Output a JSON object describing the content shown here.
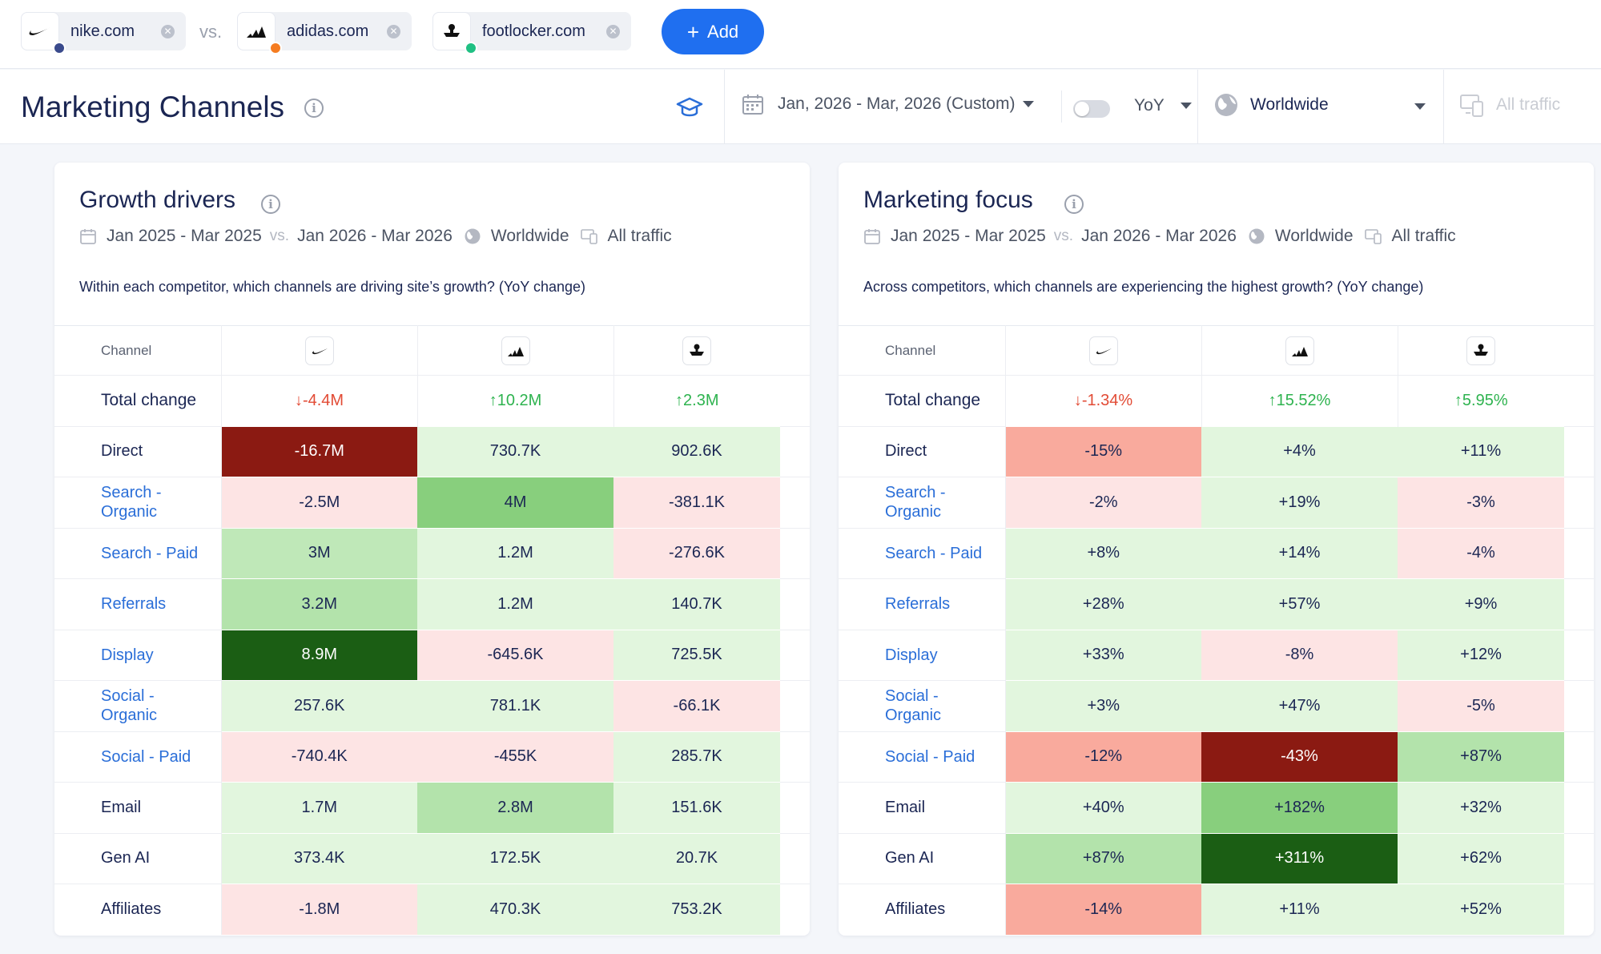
{
  "compare": {
    "sites": [
      {
        "name": "nike.com",
        "dot_color": "#3a4a8c"
      },
      {
        "name": "adidas.com",
        "dot_color": "#f57c21"
      },
      {
        "name": "footlocker.com",
        "dot_color": "#20c083"
      }
    ],
    "vs_label": "vs.",
    "add_label": "Add"
  },
  "header": {
    "title": "Marketing Channels",
    "date_range": "Jan, 2026 - Mar, 2026 (Custom)",
    "comparison": "YoY",
    "country": "Worldwide",
    "traffic": "All traffic"
  },
  "growth_drivers": {
    "title": "Growth drivers",
    "period_a": "Jan 2025 - Mar 2025",
    "vs": "vs.",
    "period_b": "Jan 2026 - Mar 2026",
    "country": "Worldwide",
    "traffic": "All traffic",
    "question": "Within each competitor, which channels are driving site’s growth? (YoY change)",
    "channel_header": "Channel",
    "total_label": "Total change",
    "totals": [
      "↓-4.4M",
      "↑10.2M",
      "↑2.3M"
    ],
    "rows": [
      {
        "channel": "Direct",
        "link": false,
        "values": [
          "-16.7M",
          "730.7K",
          "902.6K"
        ]
      },
      {
        "channel": "Search - Organic",
        "link": true,
        "values": [
          "-2.5M",
          "4M",
          "-381.1K"
        ]
      },
      {
        "channel": "Search - Paid",
        "link": true,
        "values": [
          "3M",
          "1.2M",
          "-276.6K"
        ]
      },
      {
        "channel": "Referrals",
        "link": true,
        "values": [
          "3.2M",
          "1.2M",
          "140.7K"
        ]
      },
      {
        "channel": "Display",
        "link": true,
        "values": [
          "8.9M",
          "-645.6K",
          "725.5K"
        ]
      },
      {
        "channel": "Social - Organic",
        "link": true,
        "values": [
          "257.6K",
          "781.1K",
          "-66.1K"
        ]
      },
      {
        "channel": "Social - Paid",
        "link": true,
        "values": [
          "-740.4K",
          "-455K",
          "285.7K"
        ]
      },
      {
        "channel": "Email",
        "link": false,
        "values": [
          "1.7M",
          "2.8M",
          "151.6K"
        ]
      },
      {
        "channel": "Gen AI",
        "link": false,
        "values": [
          "373.4K",
          "172.5K",
          "20.7K"
        ]
      },
      {
        "channel": "Affiliates",
        "link": false,
        "values": [
          "-1.8M",
          "470.3K",
          "753.2K"
        ]
      }
    ],
    "colors": [
      [
        "#8b1a12",
        "#e2f6de",
        "#e2f6de"
      ],
      [
        "#fde4e4",
        "#88cf7d",
        "#fde4e4"
      ],
      [
        "#bfe8b8",
        "#e2f6de",
        "#fde4e4"
      ],
      [
        "#b3e3ab",
        "#e2f6de",
        "#e2f6de"
      ],
      [
        "#1b5e14",
        "#fde4e4",
        "#e2f6de"
      ],
      [
        "#e2f6de",
        "#e2f6de",
        "#fde4e4"
      ],
      [
        "#fde4e4",
        "#fde4e4",
        "#e2f6de"
      ],
      [
        "#e2f6de",
        "#b3e3ab",
        "#e2f6de"
      ],
      [
        "#e2f6de",
        "#e2f6de",
        "#e2f6de"
      ],
      [
        "#fde4e4",
        "#e2f6de",
        "#e2f6de"
      ]
    ]
  },
  "marketing_focus": {
    "title": "Marketing focus",
    "period_a": "Jan 2025 - Mar 2025",
    "vs": "vs.",
    "period_b": "Jan 2026 - Mar 2026",
    "country": "Worldwide",
    "traffic": "All traffic",
    "question": "Across competitors, which channels are experiencing the highest growth? (YoY change)",
    "channel_header": "Channel",
    "total_label": "Total change",
    "totals": [
      "↓-1.34%",
      "↑15.52%",
      "↑5.95%"
    ],
    "rows": [
      {
        "channel": "Direct",
        "link": false,
        "values": [
          "-15%",
          "+4%",
          "+11%"
        ]
      },
      {
        "channel": "Search - Organic",
        "link": true,
        "values": [
          "-2%",
          "+19%",
          "-3%"
        ]
      },
      {
        "channel": "Search - Paid",
        "link": true,
        "values": [
          "+8%",
          "+14%",
          "-4%"
        ]
      },
      {
        "channel": "Referrals",
        "link": true,
        "values": [
          "+28%",
          "+57%",
          "+9%"
        ]
      },
      {
        "channel": "Display",
        "link": true,
        "values": [
          "+33%",
          "-8%",
          "+12%"
        ]
      },
      {
        "channel": "Social - Organic",
        "link": true,
        "values": [
          "+3%",
          "+47%",
          "-5%"
        ]
      },
      {
        "channel": "Social - Paid",
        "link": true,
        "values": [
          "-12%",
          "-43%",
          "+87%"
        ]
      },
      {
        "channel": "Email",
        "link": false,
        "values": [
          "+40%",
          "+182%",
          "+32%"
        ]
      },
      {
        "channel": "Gen AI",
        "link": false,
        "values": [
          "+87%",
          "+311%",
          "+62%"
        ]
      },
      {
        "channel": "Affiliates",
        "link": false,
        "values": [
          "-14%",
          "+11%",
          "+52%"
        ]
      }
    ],
    "colors": [
      [
        "#f9aa9d",
        "#e2f6de",
        "#e2f6de"
      ],
      [
        "#fde4e4",
        "#e2f6de",
        "#fde4e4"
      ],
      [
        "#e2f6de",
        "#e2f6de",
        "#fde4e4"
      ],
      [
        "#e2f6de",
        "#e2f6de",
        "#e2f6de"
      ],
      [
        "#e2f6de",
        "#fde4e4",
        "#e2f6de"
      ],
      [
        "#e2f6de",
        "#e2f6de",
        "#fde4e4"
      ],
      [
        "#f9aa9d",
        "#8b1a12",
        "#b3e3ab"
      ],
      [
        "#e2f6de",
        "#88cf7d",
        "#e2f6de"
      ],
      [
        "#b3e3ab",
        "#1b5e14",
        "#e2f6de"
      ],
      [
        "#f9aa9d",
        "#e2f6de",
        "#e2f6de"
      ]
    ]
  }
}
